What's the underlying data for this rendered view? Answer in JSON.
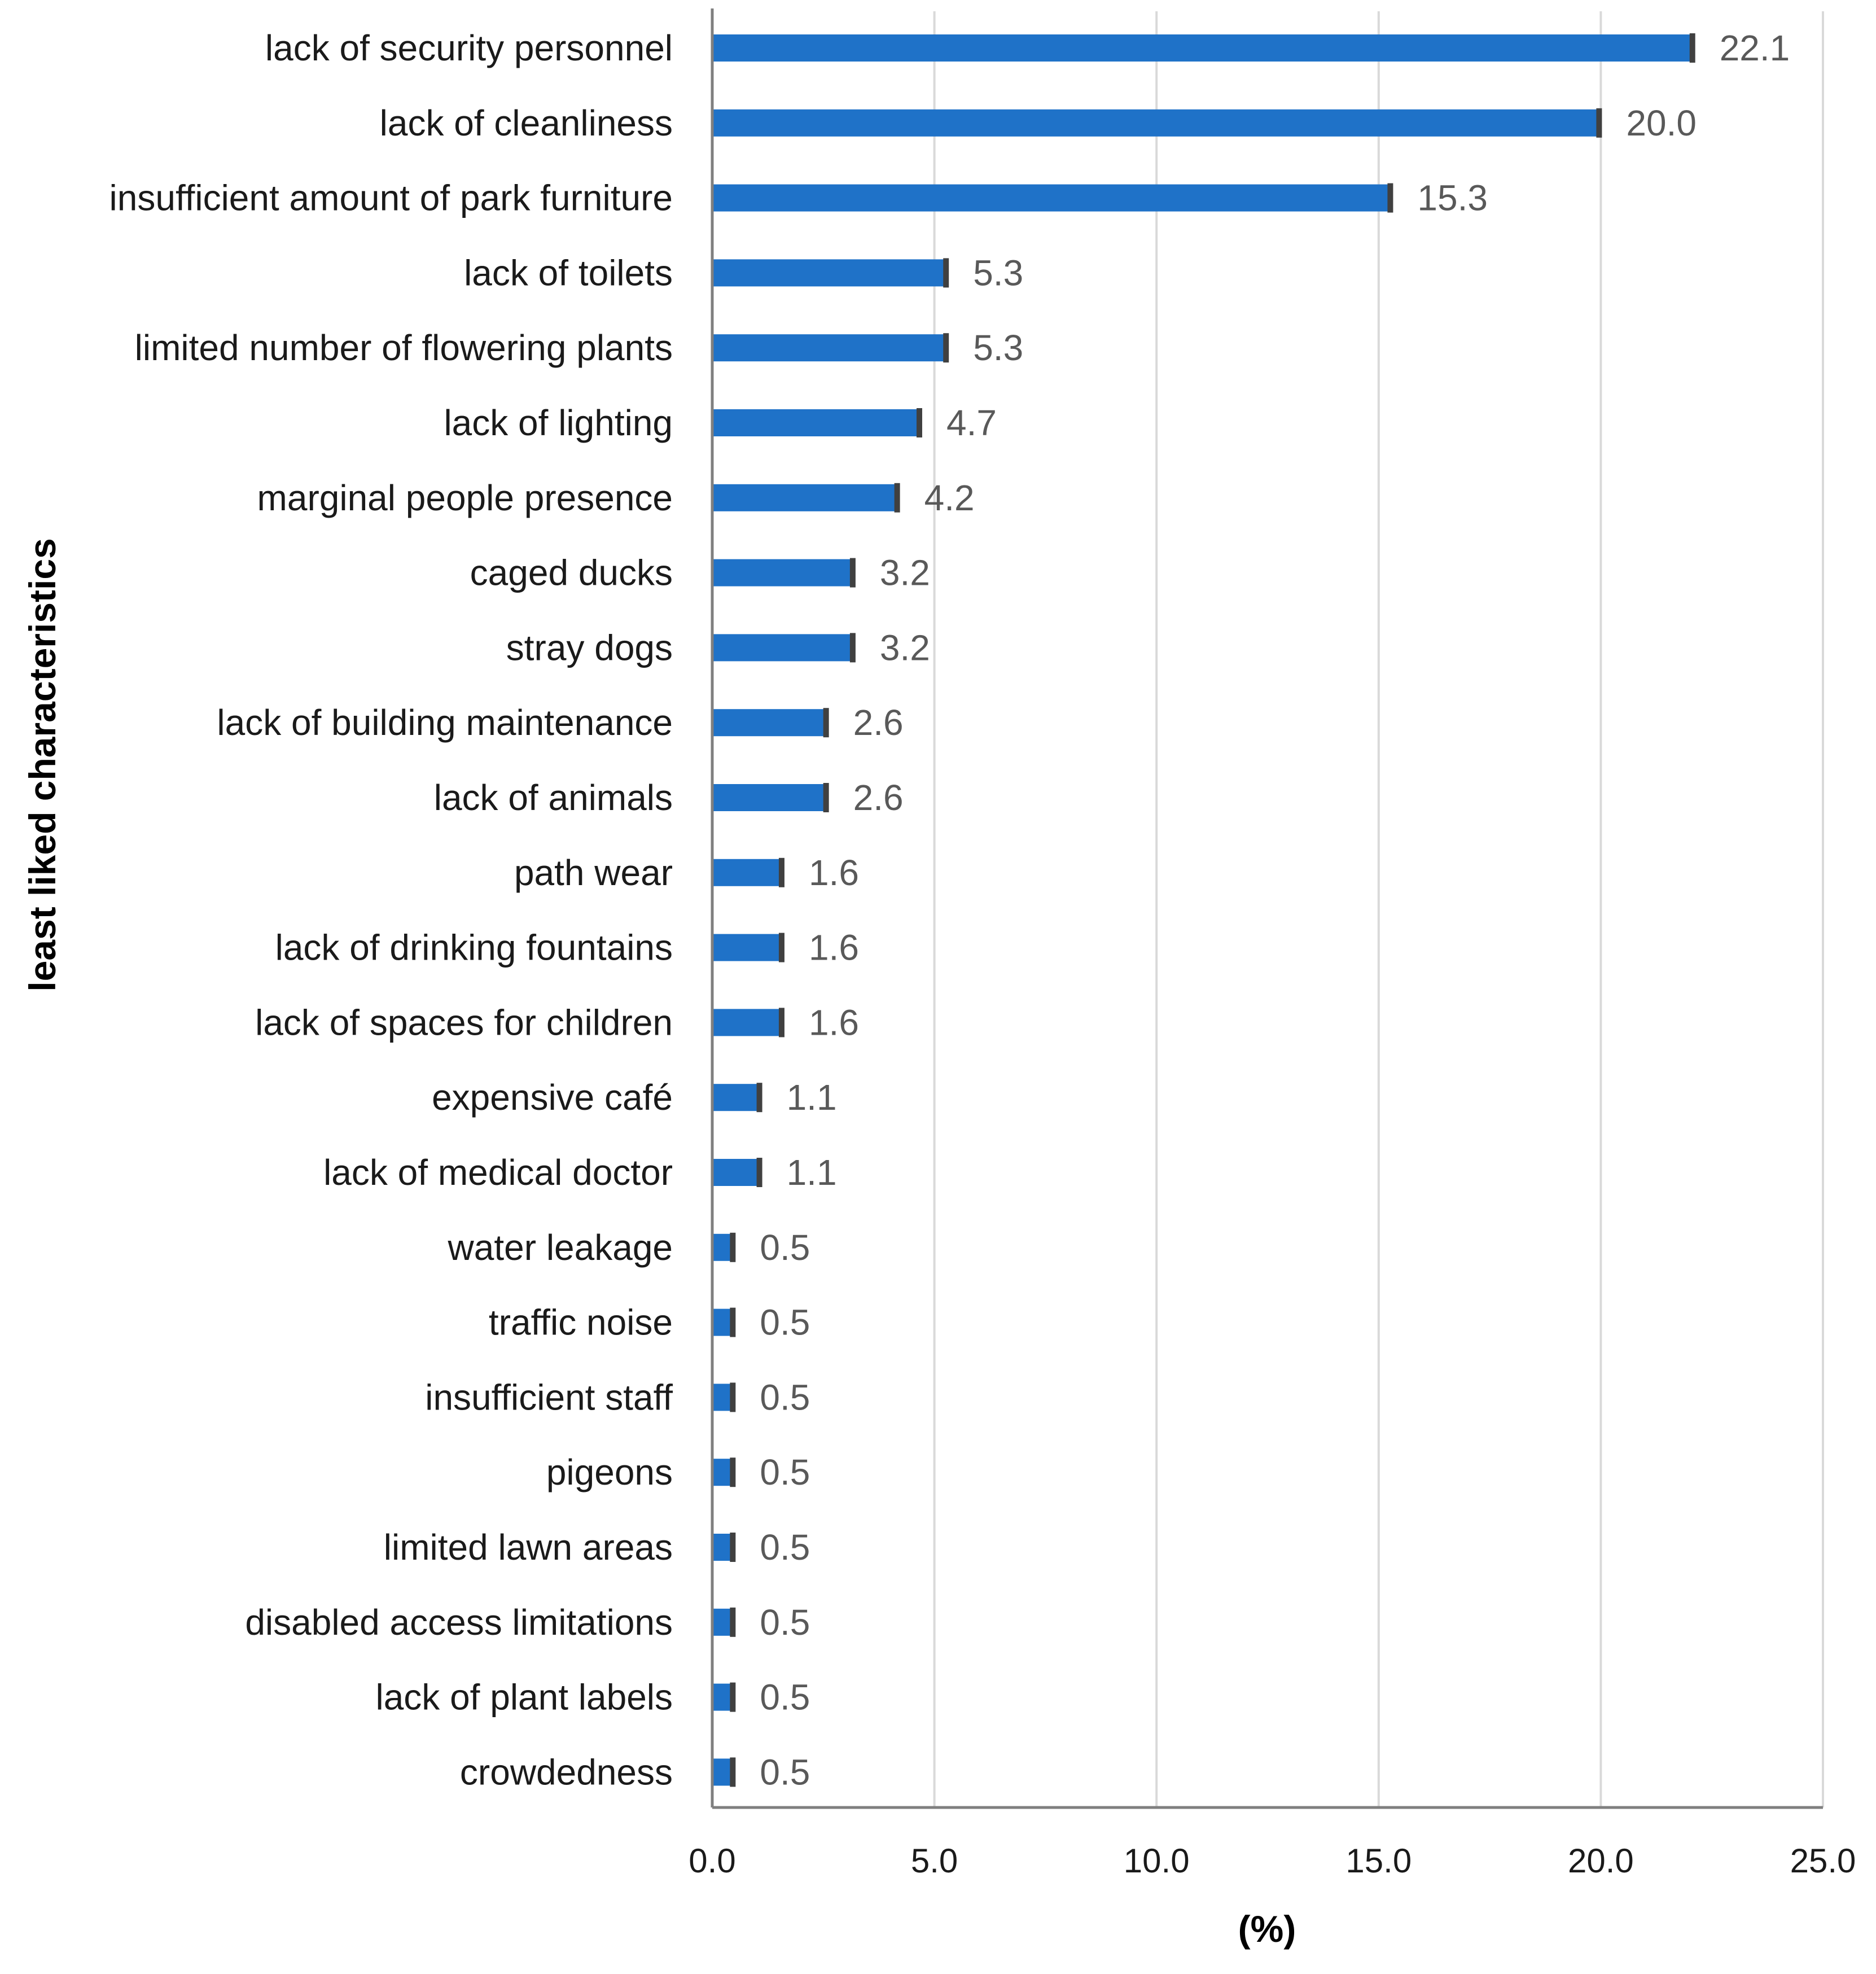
{
  "chart_data": {
    "type": "bar",
    "orientation": "horizontal",
    "title": "",
    "xlabel": "(%)",
    "ylabel": "least liked characteristics",
    "xlim": [
      0,
      25
    ],
    "xticks": [
      "0.0",
      "5.0",
      "10.0",
      "15.0",
      "20.0",
      "25.0"
    ],
    "grid": true,
    "bar_color": "#1f72c8",
    "bar_edge_color": "#404040",
    "categories": [
      "lack of security personnel",
      "lack of cleanliness",
      "insufficient amount of park furniture",
      "lack of toilets",
      "limited number of flowering plants",
      "lack of lighting",
      "marginal people presence",
      "caged ducks",
      "stray dogs",
      "lack of building maintenance",
      "lack of animals",
      "path wear",
      "lack of drinking fountains",
      "lack of spaces for children",
      "expensive café",
      "lack of medical doctor",
      "water leakage",
      "traffic noise",
      "insufficient staff",
      "pigeons",
      "limited lawn areas",
      "disabled access limitations",
      "lack of plant labels",
      "crowdedness"
    ],
    "values": [
      22.1,
      20.0,
      15.3,
      5.3,
      5.3,
      4.7,
      4.2,
      3.2,
      3.2,
      2.6,
      2.6,
      1.6,
      1.6,
      1.6,
      1.1,
      1.1,
      0.5,
      0.5,
      0.5,
      0.5,
      0.5,
      0.5,
      0.5,
      0.5
    ],
    "value_labels": [
      "22.1",
      "20.0",
      "15.3",
      "5.3",
      "5.3",
      "4.7",
      "4.2",
      "3.2",
      "3.2",
      "2.6",
      "2.6",
      "1.6",
      "1.6",
      "1.6",
      "1.1",
      "1.1",
      "0.5",
      "0.5",
      "0.5",
      "0.5",
      "0.5",
      "0.5",
      "0.5",
      "0.5"
    ]
  }
}
